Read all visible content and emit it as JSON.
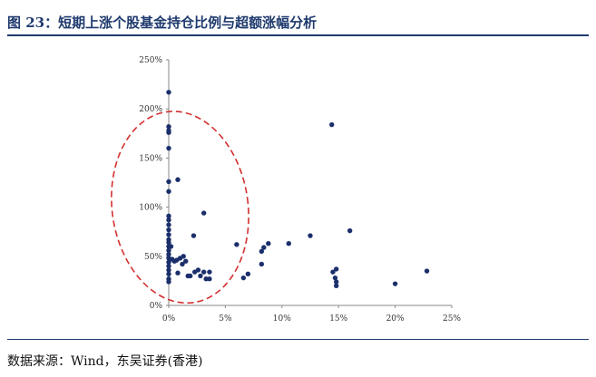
{
  "figure": {
    "title": "图 23：短期上涨个股基金持仓比例与超额涨幅分析",
    "source": "数据来源：Wind，东吴证券(香港)"
  },
  "colors": {
    "accent": "#1f3a6e",
    "points": "#1b2f6b",
    "highlight": "#d32f2f"
  },
  "chart_data": {
    "type": "scatter",
    "title": "",
    "xlabel": "",
    "ylabel": "",
    "xlim": [
      0,
      0.25
    ],
    "ylim": [
      0,
      2.5
    ],
    "x_ticks": [
      0,
      0.05,
      0.1,
      0.15,
      0.2,
      0.25
    ],
    "x_tick_labels": [
      "0%",
      "5%",
      "10%",
      "15%",
      "20%",
      "25%"
    ],
    "y_ticks": [
      0,
      0.5,
      1.0,
      1.5,
      2.0,
      2.5
    ],
    "y_tick_labels": [
      "0%",
      "50%",
      "100%",
      "150%",
      "200%",
      "250%"
    ],
    "grid": false,
    "legend": "none",
    "points": [
      [
        0.0,
        2.17
      ],
      [
        0.0,
        1.82
      ],
      [
        0.0,
        1.78
      ],
      [
        0.0,
        1.76
      ],
      [
        0.0,
        1.6
      ],
      [
        0.0,
        1.26
      ],
      [
        0.0,
        1.16
      ],
      [
        0.0,
        0.91
      ],
      [
        0.0,
        0.87
      ],
      [
        0.0,
        0.82
      ],
      [
        0.0,
        0.77
      ],
      [
        0.0,
        0.72
      ],
      [
        0.0,
        0.67
      ],
      [
        0.0,
        0.64
      ],
      [
        0.0,
        0.6
      ],
      [
        0.0,
        0.56
      ],
      [
        0.0,
        0.52
      ],
      [
        0.0,
        0.48
      ],
      [
        0.0,
        0.44
      ],
      [
        0.0,
        0.4
      ],
      [
        0.0,
        0.36
      ],
      [
        0.0,
        0.32
      ],
      [
        0.0,
        0.27
      ],
      [
        0.0,
        0.24
      ],
      [
        0.002,
        0.6
      ],
      [
        0.003,
        0.47
      ],
      [
        0.005,
        0.45
      ],
      [
        0.007,
        0.46
      ],
      [
        0.008,
        1.28
      ],
      [
        0.008,
        0.33
      ],
      [
        0.01,
        0.48
      ],
      [
        0.012,
        0.42
      ],
      [
        0.013,
        0.5
      ],
      [
        0.015,
        0.45
      ],
      [
        0.017,
        0.3
      ],
      [
        0.019,
        0.3
      ],
      [
        0.022,
        0.71
      ],
      [
        0.023,
        0.34
      ],
      [
        0.026,
        0.36
      ],
      [
        0.028,
        0.3
      ],
      [
        0.031,
        0.94
      ],
      [
        0.031,
        0.34
      ],
      [
        0.033,
        0.27
      ],
      [
        0.036,
        0.34
      ],
      [
        0.036,
        0.27
      ],
      [
        0.06,
        0.62
      ],
      [
        0.066,
        0.28
      ],
      [
        0.07,
        0.32
      ],
      [
        0.082,
        0.42
      ],
      [
        0.082,
        0.55
      ],
      [
        0.084,
        0.59
      ],
      [
        0.088,
        0.63
      ],
      [
        0.106,
        0.63
      ],
      [
        0.125,
        0.71
      ],
      [
        0.144,
        1.84
      ],
      [
        0.145,
        0.34
      ],
      [
        0.147,
        0.28
      ],
      [
        0.148,
        0.37
      ],
      [
        0.148,
        0.24
      ],
      [
        0.148,
        0.2
      ],
      [
        0.16,
        0.76
      ],
      [
        0.2,
        0.22
      ],
      [
        0.228,
        0.35
      ]
    ],
    "annotation": {
      "shape": "dashed-ellipse",
      "color": "red",
      "center": [
        0.01,
        1.0
      ],
      "radius_x": 0.06,
      "radius_y": 0.98,
      "tilt_deg": -8
    }
  }
}
